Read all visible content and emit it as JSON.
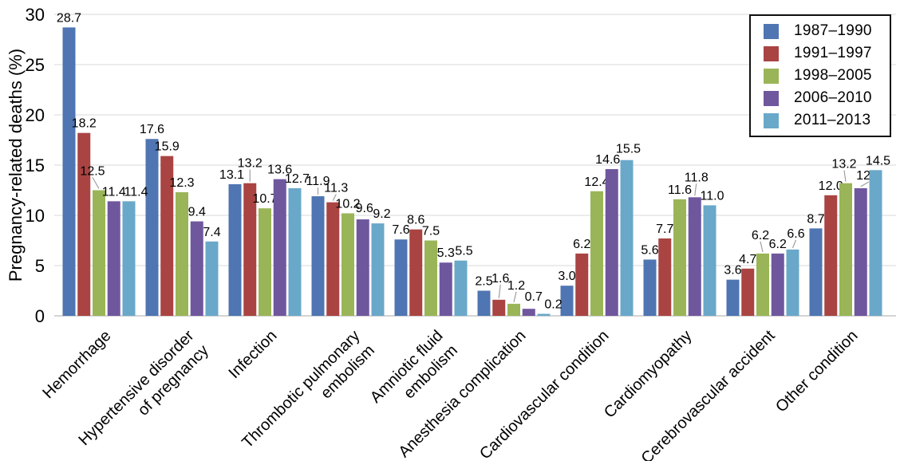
{
  "chart_data": {
    "type": "bar",
    "title": "",
    "xlabel": "",
    "ylabel": "Pregnancy-related deaths (%)",
    "ylim": [
      0,
      30
    ],
    "yticks": [
      0,
      5,
      10,
      15,
      20,
      25,
      30
    ],
    "grid": true,
    "legend_position": "top-right",
    "series": [
      {
        "name": "1987–1990",
        "color": "#4f75b2",
        "values": [
          28.7,
          17.6,
          13.1,
          11.9,
          7.6,
          2.5,
          3.0,
          5.6,
          3.6,
          8.7
        ]
      },
      {
        "name": "1991–1997",
        "color": "#a94442",
        "values": [
          18.2,
          15.9,
          13.2,
          11.3,
          8.6,
          1.6,
          6.2,
          7.7,
          4.7,
          12.0
        ]
      },
      {
        "name": "1998–2005",
        "color": "#9ab557",
        "values": [
          12.5,
          12.3,
          10.7,
          10.2,
          7.5,
          1.2,
          12.4,
          11.6,
          6.2,
          13.2
        ]
      },
      {
        "name": "2006–2010",
        "color": "#6f579e",
        "values": [
          11.4,
          9.4,
          13.6,
          9.6,
          5.3,
          0.7,
          14.6,
          11.8,
          6.2,
          12.7
        ]
      },
      {
        "name": "2011–2013",
        "color": "#6aa8c9",
        "values": [
          11.4,
          7.4,
          12.7,
          9.2,
          5.5,
          0.2,
          15.5,
          11.0,
          6.6,
          14.5
        ]
      }
    ],
    "categories": [
      {
        "lines": [
          "Hemorrhage"
        ]
      },
      {
        "lines": [
          "Hypertensive disorder",
          "of pregnancy"
        ]
      },
      {
        "lines": [
          "Infection"
        ]
      },
      {
        "lines": [
          "Thrombotic pulmonary",
          "embolism"
        ]
      },
      {
        "lines": [
          "Amniotic fluid",
          "embolism"
        ]
      },
      {
        "lines": [
          "Anesthesia complication"
        ]
      },
      {
        "lines": [
          "Cardiovascular condition"
        ]
      },
      {
        "lines": [
          "Cardiomyopathy"
        ]
      },
      {
        "lines": [
          "Cerebrovascular accident"
        ]
      },
      {
        "lines": [
          "Other condition"
        ]
      }
    ],
    "value_label_decimals": 1,
    "label_offsets": {
      "0": {
        "2": {
          "dx": -8,
          "dy": 12,
          "leader": true
        },
        "4": {
          "dx": 9
        }
      },
      "2": {
        "0": {
          "dx": -4
        },
        "1": {
          "dy": 13,
          "leader": true
        },
        "4": {
          "dx": 3
        }
      },
      "3": {
        "0": {
          "dy": 7,
          "leader": true
        },
        "1": {
          "dx": 4,
          "dy": 6,
          "leader": true
        },
        "3": {
          "dx": 2,
          "dy": 2
        },
        "4": {
          "dx": 5
        }
      },
      "4": {
        "4": {
          "dx": 4
        }
      },
      "5": {
        "1": {
          "dx": 2,
          "dy": 15,
          "leader": true
        },
        "2": {
          "dx": 3,
          "dy": 11,
          "leader": true
        },
        "3": {
          "dx": 6,
          "dy": 3
        },
        "4": {
          "dx": 12
        }
      },
      "6": {
        "3": {
          "dx": -5
        },
        "4": {
          "dx": 2,
          "dy": 2
        }
      },
      "7": {
        "3": {
          "dx": 2,
          "dy": 13,
          "leader": true
        },
        "4": {
          "dx": 3
        }
      },
      "8": {
        "2": {
          "dx": -3,
          "dy": 11,
          "leader": true
        },
        "4": {
          "dx": 4,
          "dy": 8,
          "leader": true
        }
      },
      "9": {
        "2": {
          "dx": -2,
          "dy": 12,
          "leader": true
        },
        "3": {
          "dx": 10,
          "dy": 4,
          "leader": true
        },
        "4": {
          "dx": 3
        }
      }
    },
    "colors": {
      "background": "#ffffff",
      "gridline": "#d9d9d9",
      "baseline": "#c6c6c6",
      "leader_line": "#9e9e9e",
      "text": "#000000"
    }
  }
}
